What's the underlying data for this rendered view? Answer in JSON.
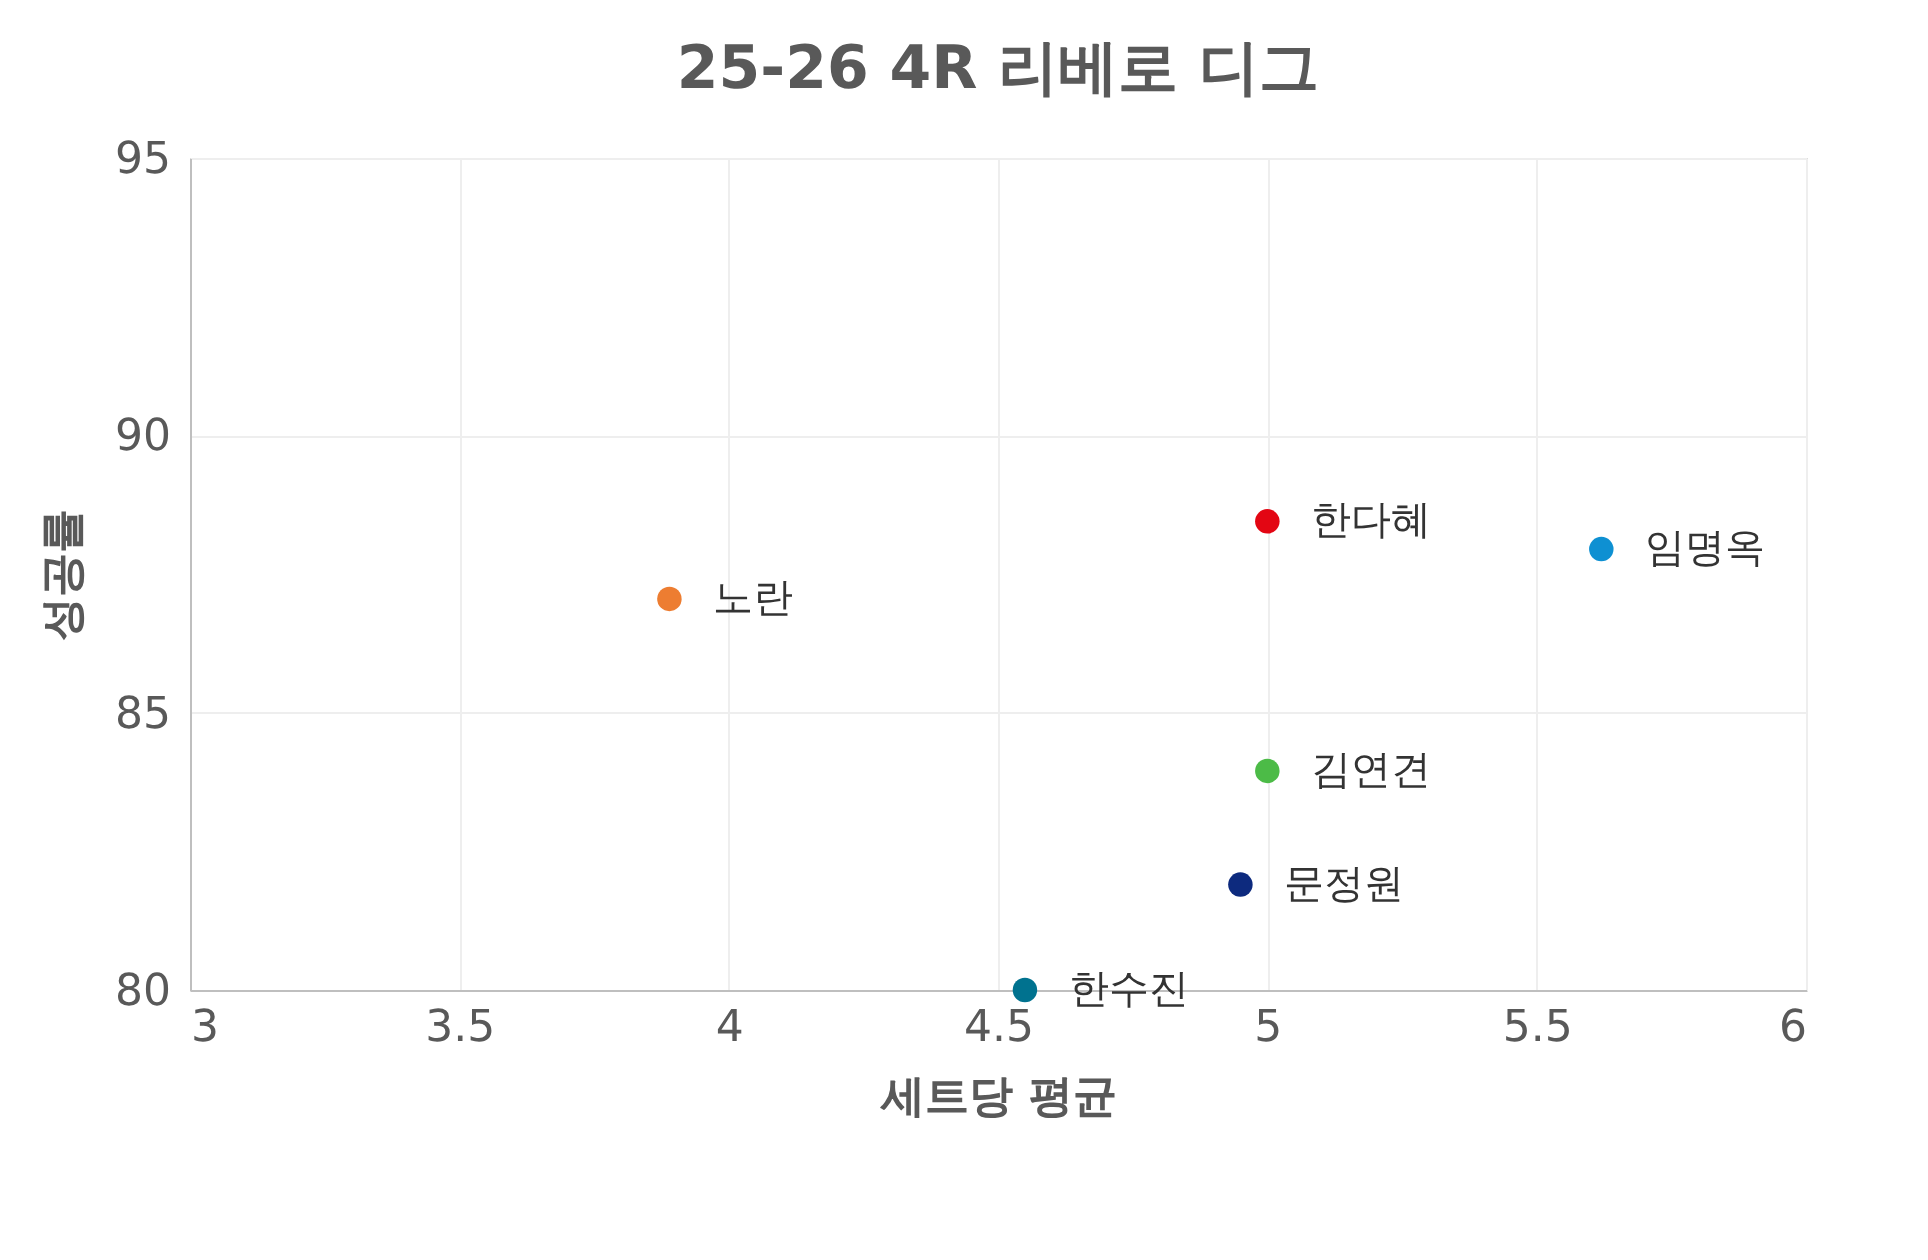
{
  "chart_data": {
    "type": "scatter",
    "title": "25-26  4R 리베로 디그",
    "xlabel": "세트당 평균",
    "ylabel": "성공률",
    "series": [
      {
        "name": "노란",
        "color": "#ed7d31",
        "x": [
          3.89
        ],
        "values": [
          87.05
        ]
      },
      {
        "name": "한다혜",
        "color": "#e30613",
        "x": [
          5.0
        ],
        "values": [
          88.45
        ]
      },
      {
        "name": "임명옥",
        "color": "#0e90d2",
        "x": [
          5.62
        ],
        "values": [
          87.95
        ]
      },
      {
        "name": "김연견",
        "color": "#4cbb47",
        "x": [
          5.0
        ],
        "values": [
          83.95
        ]
      },
      {
        "name": "문정원",
        "color": "#0d2a7e",
        "x": [
          4.95
        ],
        "values": [
          81.9
        ]
      },
      {
        "name": "한수진",
        "color": "#00728f",
        "x": [
          4.55
        ],
        "values": [
          80.0
        ]
      }
    ],
    "xlim": [
      3,
      6
    ],
    "xticks": [
      3,
      3.5,
      4,
      4.5,
      5,
      5.5,
      6
    ],
    "ylim": [
      80,
      95
    ],
    "yticks": [
      80,
      85,
      90,
      95
    ],
    "grid": true,
    "marker": "circle"
  }
}
